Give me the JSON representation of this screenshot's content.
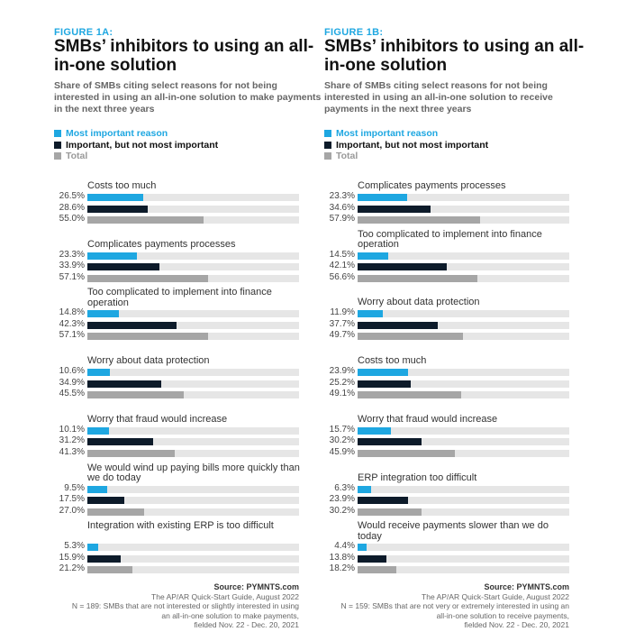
{
  "legend": {
    "most": "Most important reason",
    "important": "Important, but not most important",
    "total": "Total"
  },
  "colors": {
    "most": "#1ea7e1",
    "important": "#0d1b2a",
    "total": "#a6a6a6",
    "track": "#e6e6e6"
  },
  "chart_data": [
    {
      "type": "bar",
      "orientation": "horizontal",
      "figure": "FIGURE 1A:",
      "title": "SMBs’ inhibitors to using an all-in-one solution",
      "subtitle": "Share of SMBs citing select reasons for not being interested in using an all-in-one solution to make payments in the next three years",
      "xlim": [
        0,
        100
      ],
      "categories": [
        "Costs too much",
        "Complicates payments processes",
        "Too complicated to implement into finance operation",
        "Worry about data protection",
        "Worry that fraud would increase",
        "We would wind up paying bills more quickly than we do today",
        "Integration with existing ERP is too difficult"
      ],
      "series": [
        {
          "name": "Most important reason",
          "values": [
            26.5,
            23.3,
            14.8,
            10.6,
            10.1,
            9.5,
            5.3
          ]
        },
        {
          "name": "Important, but not most important",
          "values": [
            28.6,
            33.9,
            42.3,
            34.9,
            31.2,
            17.5,
            15.9
          ]
        },
        {
          "name": "Total",
          "values": [
            55.0,
            57.1,
            57.1,
            45.5,
            41.3,
            27.0,
            21.2
          ]
        }
      ],
      "source": {
        "label": "Source: PYMNTS.com",
        "lines": [
          "The AP/AR Quick-Start Guide, August 2022",
          "N = 189: SMBs that are not interested or slightly interested in using",
          "an all-in-one solution to make payments,",
          "fielded Nov. 22 - Dec. 20, 2021"
        ]
      }
    },
    {
      "type": "bar",
      "orientation": "horizontal",
      "figure": "FIGURE 1B:",
      "title": "SMBs’ inhibitors to using an all-in-one solution",
      "subtitle": "Share of SMBs citing select reasons for not being interested in using an all-in-one solution to receive payments in the next three years",
      "xlim": [
        0,
        100
      ],
      "categories": [
        "Complicates payments processes",
        "Too complicated to implement into finance operation",
        "Worry about data protection",
        "Costs too much",
        "Worry that fraud would increase",
        "ERP integration too difficult",
        "Would receive payments slower than we do today"
      ],
      "series": [
        {
          "name": "Most important reason",
          "values": [
            23.3,
            14.5,
            11.9,
            23.9,
            15.7,
            6.3,
            4.4
          ]
        },
        {
          "name": "Important, but not most important",
          "values": [
            34.6,
            42.1,
            37.7,
            25.2,
            30.2,
            23.9,
            13.8
          ]
        },
        {
          "name": "Total",
          "values": [
            57.9,
            56.6,
            49.7,
            49.1,
            45.9,
            30.2,
            18.2
          ]
        }
      ],
      "source": {
        "label": "Source: PYMNTS.com",
        "lines": [
          "The AP/AR Quick-Start Guide, August 2022",
          "N = 159: SMBs that are not very or extremely interested in using an",
          "all-in-one solution to receive payments,",
          "fielded Nov. 22 - Dec. 20, 2021"
        ]
      }
    }
  ]
}
